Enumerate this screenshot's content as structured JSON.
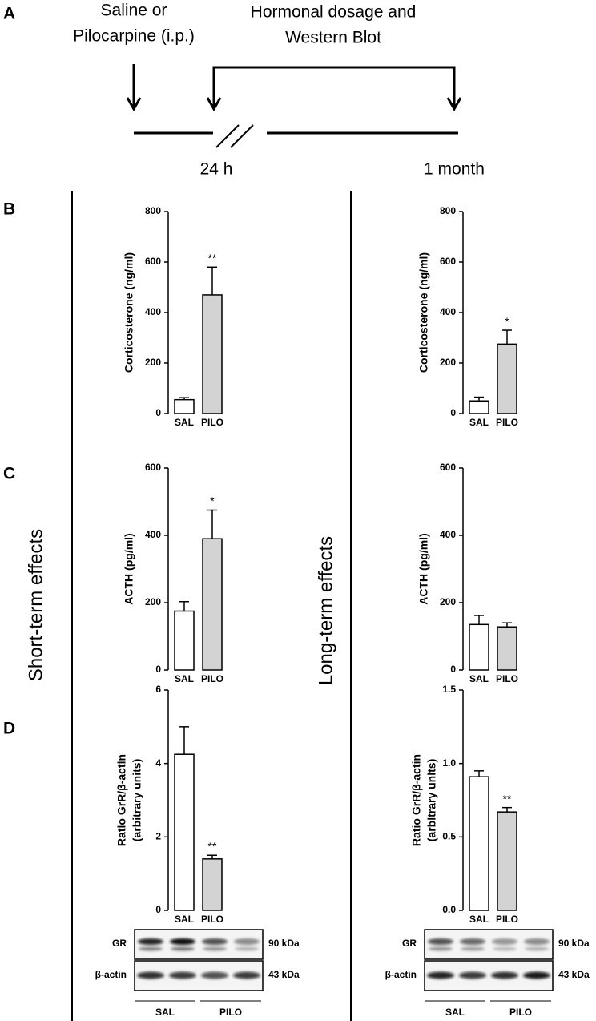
{
  "panel_labels": [
    "A",
    "B",
    "C",
    "D"
  ],
  "timeline": {
    "injection": [
      "Saline or",
      "Pilocarpine (i.p.)"
    ],
    "measurement": [
      "Hormonal dosage and",
      "Western Blot"
    ],
    "times": [
      "24 h",
      "1 month"
    ]
  },
  "sections": [
    "Short-term effects",
    "Long-term effects"
  ],
  "chart_data": [
    {
      "type": "bar",
      "ylabel": [
        "Corticosterone (ng/ml)"
      ],
      "categories": [
        "SAL",
        "PILO"
      ],
      "values": [
        55,
        470
      ],
      "errors": [
        8,
        110
      ],
      "significance": [
        null,
        "**"
      ],
      "colors": [
        "#ffffff",
        "#d3d3d3"
      ],
      "ylim": [
        0,
        800
      ],
      "yticks": [
        0,
        200,
        400,
        600,
        800
      ]
    },
    {
      "type": "bar",
      "ylabel": [
        "Corticosterone (ng/ml)"
      ],
      "categories": [
        "SAL",
        "PILO"
      ],
      "values": [
        50,
        275
      ],
      "errors": [
        15,
        55
      ],
      "significance": [
        null,
        "*"
      ],
      "colors": [
        "#ffffff",
        "#d3d3d3"
      ],
      "ylim": [
        0,
        800
      ],
      "yticks": [
        0,
        200,
        400,
        600,
        800
      ]
    },
    {
      "type": "bar",
      "ylabel": [
        "ACTH (pg/ml)"
      ],
      "categories": [
        "SAL",
        "PILO"
      ],
      "values": [
        175,
        390
      ],
      "errors": [
        28,
        85
      ],
      "significance": [
        null,
        "*"
      ],
      "colors": [
        "#ffffff",
        "#d3d3d3"
      ],
      "ylim": [
        0,
        600
      ],
      "yticks": [
        0,
        200,
        400,
        600
      ]
    },
    {
      "type": "bar",
      "ylabel": [
        "ACTH (pg/ml)"
      ],
      "categories": [
        "SAL",
        "PILO"
      ],
      "values": [
        135,
        128
      ],
      "errors": [
        27,
        12
      ],
      "significance": [
        null,
        null
      ],
      "colors": [
        "#ffffff",
        "#d3d3d3"
      ],
      "ylim": [
        0,
        600
      ],
      "yticks": [
        0,
        200,
        400,
        600
      ]
    },
    {
      "type": "bar",
      "ylabel": [
        "Ratio GrR/β-actin",
        "(arbitrary units)"
      ],
      "categories": [
        "SAL",
        "PILO"
      ],
      "values": [
        4.25,
        1.4
      ],
      "errors": [
        0.75,
        0.1
      ],
      "significance": [
        null,
        "**"
      ],
      "colors": [
        "#ffffff",
        "#d3d3d3"
      ],
      "ylim": [
        0,
        6
      ],
      "yticks": [
        0,
        2,
        4,
        6
      ]
    },
    {
      "type": "bar",
      "ylabel": [
        "Ratio GrR/β-actin",
        "(arbitrary units)"
      ],
      "categories": [
        "SAL",
        "PILO"
      ],
      "values": [
        0.91,
        0.67
      ],
      "errors": [
        0.04,
        0.03
      ],
      "significance": [
        null,
        "**"
      ],
      "colors": [
        "#ffffff",
        "#d3d3d3"
      ],
      "ylim": [
        0,
        1.5
      ],
      "yticks": [
        {
          "value": 0,
          "label": "0.0"
        },
        {
          "value": 0.5,
          "label": "0.5"
        },
        {
          "value": 1,
          "label": "1.0"
        },
        {
          "value": 1.5,
          "label": "1.5"
        }
      ]
    }
  ],
  "blots": [
    {
      "rows": [
        "GR",
        "β-actin"
      ],
      "sizes": [
        "90 kDa",
        "43 kDa"
      ],
      "groups": [
        "SAL",
        "PILO"
      ]
    },
    {
      "rows": [
        "GR",
        "β-actin"
      ],
      "sizes": [
        "90 kDa",
        "43 kDa"
      ],
      "groups": [
        "SAL",
        "PILO"
      ]
    }
  ]
}
